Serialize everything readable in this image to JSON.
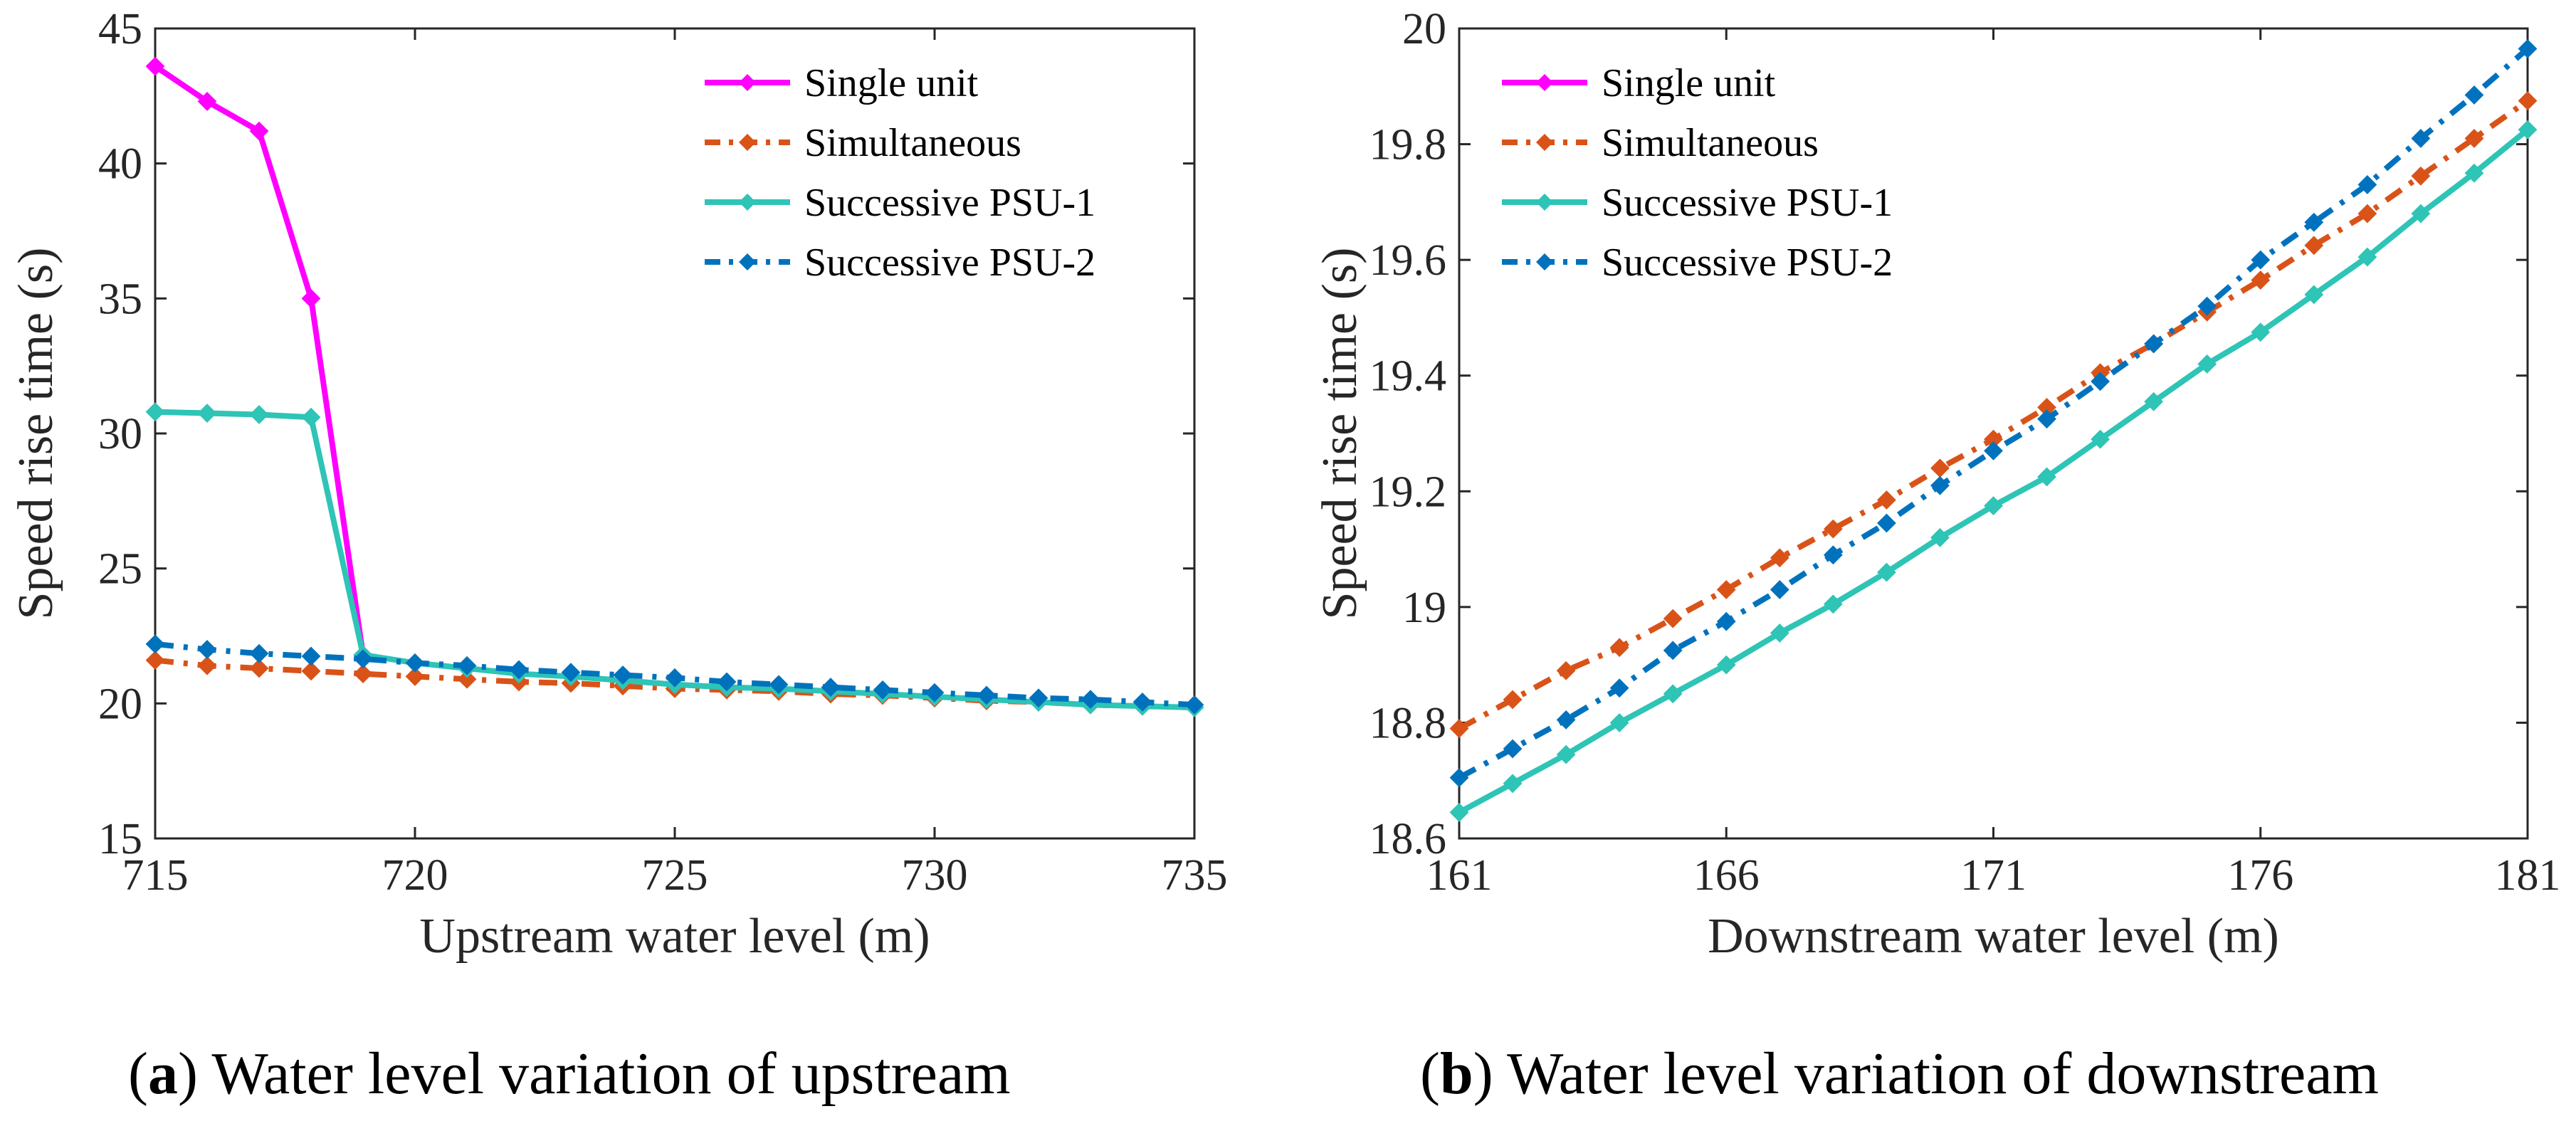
{
  "colors": {
    "single": "#ff00ff",
    "simultaneous": "#d95319",
    "psu1": "#2ec4b6",
    "psu2": "#0072bd",
    "axis": "#262626"
  },
  "captions": {
    "a_label": "a",
    "a_text": "Water level variation of upstream",
    "b_label": "b",
    "b_text": "Water level variation of downstream"
  },
  "chart_data": [
    {
      "type": "line",
      "xlabel": "Upstream water level (m)",
      "ylabel": "Speed rise time (s)",
      "xlim": [
        715,
        735
      ],
      "ylim": [
        15,
        45
      ],
      "xticks": [
        715,
        720,
        725,
        730,
        735
      ],
      "xtick_labels": [
        "715",
        "720",
        "725",
        "730",
        "735"
      ],
      "yticks": [
        15,
        20,
        25,
        30,
        35,
        40,
        45
      ],
      "ytick_labels": [
        "15",
        "20",
        "25",
        "30",
        "35",
        "40",
        "45"
      ],
      "legend_position": "top-right",
      "series": [
        {
          "name": "Single unit",
          "key": "single",
          "dash": "solid",
          "x": [
            715,
            716,
            717,
            718,
            719
          ],
          "values": [
            43.6,
            42.3,
            41.2,
            35.0,
            21.8
          ]
        },
        {
          "name": "Simultaneous",
          "key": "simultaneous",
          "dash": "dashdot",
          "x": [
            715,
            716,
            717,
            718,
            719,
            720,
            721,
            722,
            723,
            724,
            725,
            726,
            727,
            728,
            729,
            730,
            731,
            732,
            733,
            734,
            735
          ],
          "values": [
            21.6,
            21.4,
            21.3,
            21.2,
            21.1,
            21.0,
            20.9,
            20.8,
            20.75,
            20.65,
            20.55,
            20.5,
            20.45,
            20.35,
            20.3,
            20.2,
            20.1,
            20.05,
            19.95,
            19.9,
            19.85
          ]
        },
        {
          "name": "Successive PSU-1",
          "key": "psu1",
          "dash": "solid",
          "x": [
            715,
            716,
            717,
            718,
            719,
            720,
            721,
            722,
            723,
            724,
            725,
            726,
            727,
            728,
            729,
            730,
            731,
            732,
            733,
            734,
            735
          ],
          "values": [
            30.8,
            30.75,
            30.7,
            30.6,
            21.8,
            21.5,
            21.3,
            21.1,
            21.0,
            20.85,
            20.7,
            20.6,
            20.55,
            20.45,
            20.35,
            20.25,
            20.15,
            20.05,
            19.95,
            19.9,
            19.85
          ]
        },
        {
          "name": "Successive PSU-2",
          "key": "psu2",
          "dash": "dashdot",
          "x": [
            715,
            716,
            717,
            718,
            719,
            720,
            721,
            722,
            723,
            724,
            725,
            726,
            727,
            728,
            729,
            730,
            731,
            732,
            733,
            734,
            735
          ],
          "values": [
            22.2,
            22.0,
            21.85,
            21.75,
            21.65,
            21.5,
            21.4,
            21.25,
            21.15,
            21.05,
            20.95,
            20.8,
            20.7,
            20.6,
            20.5,
            20.4,
            20.3,
            20.2,
            20.15,
            20.05,
            19.95
          ]
        }
      ]
    },
    {
      "type": "line",
      "xlabel": "Downstream water level (m)",
      "ylabel": "Speed rise time (s)",
      "xlim": [
        161,
        181
      ],
      "ylim": [
        18.6,
        20
      ],
      "xticks": [
        161,
        166,
        171,
        176,
        181
      ],
      "xtick_labels": [
        "161",
        "166",
        "171",
        "176",
        "181"
      ],
      "yticks": [
        18.6,
        18.8,
        19,
        19.2,
        19.4,
        19.6,
        19.8,
        20
      ],
      "ytick_labels": [
        "18.6",
        "18.8",
        "19",
        "19.2",
        "19.4",
        "19.6",
        "19.8",
        "20"
      ],
      "legend_position": "top-left",
      "series": [
        {
          "name": "Single unit",
          "key": "single",
          "dash": "solid",
          "x": [],
          "values": []
        },
        {
          "name": "Simultaneous",
          "key": "simultaneous",
          "dash": "dashdot",
          "x": [
            161,
            162,
            163,
            164,
            165,
            166,
            167,
            168,
            169,
            170,
            171,
            172,
            173,
            174,
            175,
            176,
            177,
            178,
            179,
            180,
            181
          ],
          "values": [
            18.79,
            18.84,
            18.89,
            18.93,
            18.98,
            19.03,
            19.085,
            19.135,
            19.185,
            19.24,
            19.29,
            19.345,
            19.405,
            19.455,
            19.51,
            19.565,
            19.625,
            19.68,
            19.745,
            19.81,
            19.875
          ]
        },
        {
          "name": "Successive PSU-1",
          "key": "psu1",
          "dash": "solid",
          "x": [
            161,
            162,
            163,
            164,
            165,
            166,
            167,
            168,
            169,
            170,
            171,
            172,
            173,
            174,
            175,
            176,
            177,
            178,
            179,
            180,
            181
          ],
          "values": [
            18.645,
            18.695,
            18.745,
            18.8,
            18.85,
            18.9,
            18.955,
            19.005,
            19.06,
            19.12,
            19.175,
            19.225,
            19.29,
            19.355,
            19.42,
            19.475,
            19.54,
            19.605,
            19.68,
            19.75,
            19.825
          ]
        },
        {
          "name": "Successive PSU-2",
          "key": "psu2",
          "dash": "dashdot",
          "x": [
            161,
            162,
            163,
            164,
            165,
            166,
            167,
            168,
            169,
            170,
            171,
            172,
            173,
            174,
            175,
            176,
            177,
            178,
            179,
            180,
            181
          ],
          "values": [
            18.705,
            18.755,
            18.805,
            18.86,
            18.925,
            18.975,
            19.03,
            19.09,
            19.145,
            19.21,
            19.27,
            19.325,
            19.39,
            19.455,
            19.52,
            19.6,
            19.665,
            19.73,
            19.81,
            19.885,
            19.965
          ]
        }
      ]
    }
  ]
}
